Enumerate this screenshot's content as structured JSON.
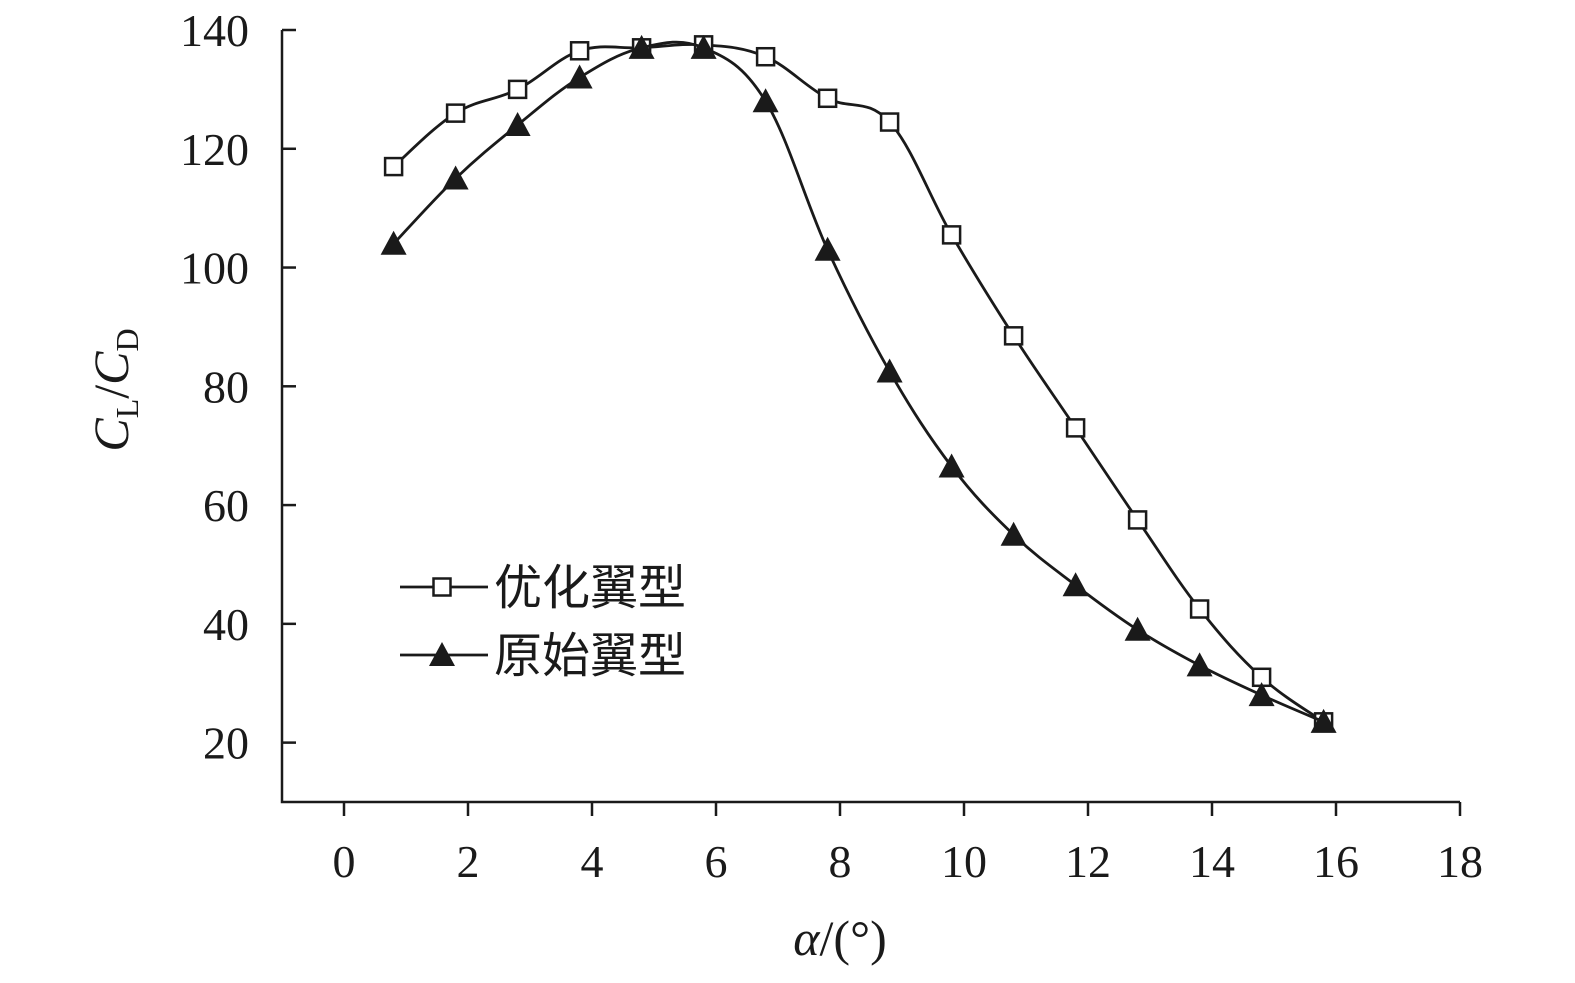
{
  "chart_data": {
    "type": "line",
    "x_axis": {
      "title_symbol": "α",
      "title_unit": "/(°)",
      "min": -1,
      "max": 18,
      "ticks": [
        0,
        2,
        4,
        6,
        8,
        10,
        12,
        14,
        16,
        18
      ],
      "tick_labels": [
        "0",
        "2",
        "4",
        "6",
        "8",
        "10",
        "12",
        "14",
        "16",
        "18"
      ]
    },
    "y_axis": {
      "title_num": "C",
      "title_num_sub": "L",
      "title_sep": "/",
      "title_den": "C",
      "title_den_sub": "D",
      "min": 10,
      "max": 140,
      "ticks": [
        20,
        40,
        60,
        80,
        100,
        120,
        140
      ],
      "tick_labels": [
        "20",
        "40",
        "60",
        "80",
        "100",
        "120",
        "140"
      ]
    },
    "grid": false,
    "legend_position": "left-middle",
    "series": [
      {
        "name": "优化翼型",
        "marker": "square-open",
        "color": "#1a1a1a",
        "x": [
          0.8,
          1.8,
          2.8,
          3.8,
          4.8,
          5.8,
          6.8,
          7.8,
          8.8,
          9.8,
          10.8,
          11.8,
          12.8,
          13.8,
          14.8,
          15.8
        ],
        "y": [
          117,
          126,
          130,
          136.5,
          137,
          137.5,
          135.5,
          128.5,
          124.5,
          105.5,
          88.5,
          73,
          57.5,
          42.5,
          31,
          23.5
        ]
      },
      {
        "name": "原始翼型",
        "marker": "triangle-filled",
        "color": "#1a1a1a",
        "x": [
          0.8,
          1.8,
          2.8,
          3.8,
          4.8,
          5.8,
          6.8,
          7.8,
          8.8,
          9.8,
          10.8,
          11.8,
          12.8,
          13.8,
          14.8,
          15.8
        ],
        "y": [
          104,
          115,
          124,
          132,
          137,
          137,
          128,
          103,
          82.5,
          66.5,
          55,
          46.5,
          39,
          33,
          28,
          23.5
        ]
      }
    ]
  }
}
